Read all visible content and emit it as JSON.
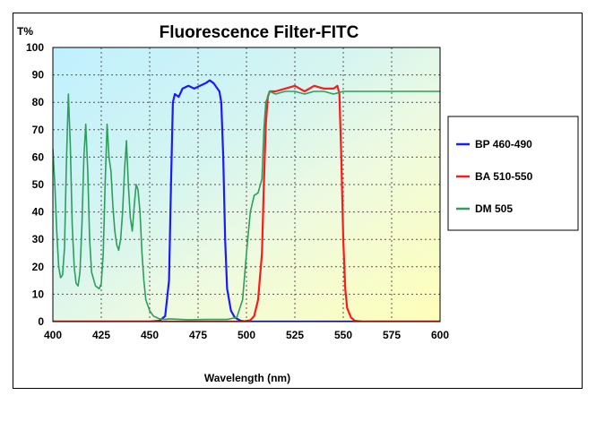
{
  "chart_data": {
    "type": "line",
    "title": "Fluorescence Filter-FITC",
    "xlabel": "Wavelength (nm)",
    "ylabel": "T%",
    "xlim": [
      400,
      600
    ],
    "ylim": [
      0,
      100
    ],
    "x_ticks": [
      400,
      425,
      450,
      475,
      500,
      525,
      550,
      575,
      600
    ],
    "y_ticks": [
      0,
      10,
      20,
      30,
      40,
      50,
      60,
      70,
      80,
      90,
      100
    ],
    "grid": true,
    "legend_position": "right",
    "series": [
      {
        "name": "BP 460-490",
        "color": "#1a1aff",
        "points": [
          [
            400,
            0
          ],
          [
            450,
            0
          ],
          [
            455,
            0.3
          ],
          [
            458,
            2
          ],
          [
            460,
            15
          ],
          [
            461,
            50
          ],
          [
            462,
            80
          ],
          [
            463,
            83
          ],
          [
            465,
            82
          ],
          [
            467,
            85
          ],
          [
            470,
            86
          ],
          [
            473,
            85
          ],
          [
            476,
            86
          ],
          [
            479,
            87
          ],
          [
            481,
            88
          ],
          [
            483,
            87
          ],
          [
            485,
            85
          ],
          [
            486,
            84
          ],
          [
            487,
            80
          ],
          [
            488,
            60
          ],
          [
            489,
            30
          ],
          [
            490,
            12
          ],
          [
            492,
            4
          ],
          [
            494,
            1.5
          ],
          [
            497,
            0.3
          ],
          [
            500,
            0
          ],
          [
            600,
            0
          ]
        ]
      },
      {
        "name": "BA 510-550",
        "color": "#ff1a1a",
        "points": [
          [
            400,
            0
          ],
          [
            498,
            0
          ],
          [
            502,
            0.5
          ],
          [
            504,
            2
          ],
          [
            506,
            8
          ],
          [
            508,
            25
          ],
          [
            509,
            50
          ],
          [
            510,
            72
          ],
          [
            511,
            82
          ],
          [
            512,
            84
          ],
          [
            515,
            84
          ],
          [
            520,
            85
          ],
          [
            525,
            86
          ],
          [
            530,
            84
          ],
          [
            535,
            86
          ],
          [
            540,
            85
          ],
          [
            545,
            85
          ],
          [
            547,
            86
          ],
          [
            548,
            83
          ],
          [
            549,
            60
          ],
          [
            550,
            30
          ],
          [
            551,
            12
          ],
          [
            552,
            5
          ],
          [
            554,
            1.5
          ],
          [
            556,
            0.3
          ],
          [
            560,
            0
          ],
          [
            600,
            0
          ]
        ]
      },
      {
        "name": "DM 505",
        "color": "#2e9e5e",
        "points": [
          [
            400,
            63
          ],
          [
            401,
            50
          ],
          [
            402,
            33
          ],
          [
            403,
            20
          ],
          [
            404,
            16
          ],
          [
            405,
            17
          ],
          [
            406,
            27
          ],
          [
            407,
            58
          ],
          [
            408,
            83
          ],
          [
            409,
            65
          ],
          [
            410,
            35
          ],
          [
            411,
            20
          ],
          [
            412,
            14
          ],
          [
            413,
            13
          ],
          [
            414,
            18
          ],
          [
            415,
            35
          ],
          [
            416,
            60
          ],
          [
            417,
            72
          ],
          [
            418,
            55
          ],
          [
            419,
            30
          ],
          [
            420,
            18
          ],
          [
            422,
            13
          ],
          [
            424,
            12
          ],
          [
            425,
            14
          ],
          [
            426,
            25
          ],
          [
            427,
            50
          ],
          [
            428,
            72
          ],
          [
            429,
            60
          ],
          [
            430,
            55
          ],
          [
            431,
            42
          ],
          [
            432,
            33
          ],
          [
            433,
            28
          ],
          [
            434,
            26
          ],
          [
            435,
            30
          ],
          [
            436,
            40
          ],
          [
            437,
            55
          ],
          [
            438,
            66
          ],
          [
            439,
            50
          ],
          [
            440,
            38
          ],
          [
            441,
            33
          ],
          [
            442,
            42
          ],
          [
            443,
            50
          ],
          [
            444,
            48
          ],
          [
            445,
            40
          ],
          [
            446,
            25
          ],
          [
            447,
            15
          ],
          [
            448,
            8
          ],
          [
            450,
            4
          ],
          [
            452,
            2
          ],
          [
            455,
            1
          ],
          [
            458,
            0.8
          ],
          [
            460,
            1
          ],
          [
            470,
            0.7
          ],
          [
            480,
            0.8
          ],
          [
            490,
            0.8
          ],
          [
            495,
            1.5
          ],
          [
            498,
            8
          ],
          [
            500,
            25
          ],
          [
            502,
            40
          ],
          [
            504,
            46
          ],
          [
            506,
            47
          ],
          [
            508,
            52
          ],
          [
            509,
            70
          ],
          [
            510,
            80
          ],
          [
            512,
            84
          ],
          [
            515,
            83
          ],
          [
            520,
            84
          ],
          [
            525,
            84
          ],
          [
            530,
            83
          ],
          [
            535,
            84
          ],
          [
            540,
            84
          ],
          [
            545,
            83
          ],
          [
            550,
            84
          ],
          [
            555,
            84
          ],
          [
            560,
            84
          ],
          [
            570,
            84
          ],
          [
            580,
            84
          ],
          [
            590,
            84
          ],
          [
            600,
            84
          ]
        ]
      }
    ]
  }
}
